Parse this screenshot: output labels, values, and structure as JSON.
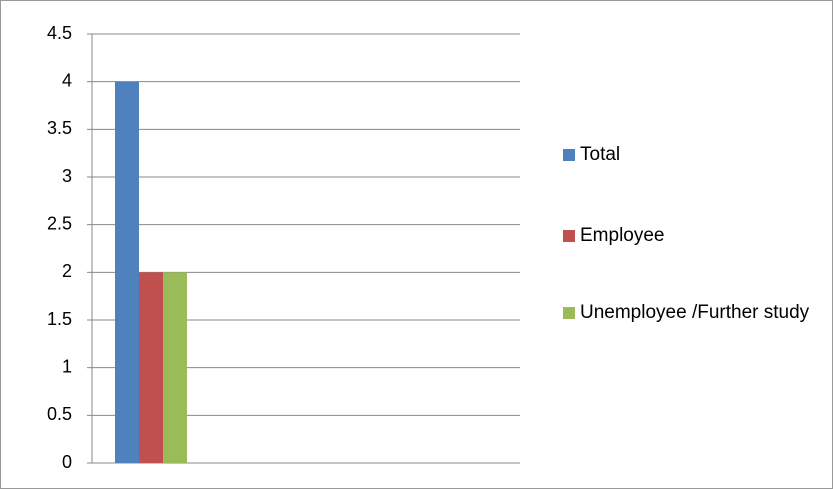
{
  "chart_data": {
    "type": "bar",
    "categories": [
      null
    ],
    "series": [
      {
        "name": "Total",
        "color": "#4f81bd",
        "values": [
          4
        ]
      },
      {
        "name": "Employee",
        "color": "#c0504d",
        "values": [
          2
        ]
      },
      {
        "name": "Unemployee /Further study",
        "color": "#9bbb59",
        "values": [
          2
        ]
      }
    ],
    "ylim": [
      0,
      4.5
    ],
    "yticks": [
      0,
      0.5,
      1,
      1.5,
      2,
      2.5,
      3,
      3.5,
      4,
      4.5
    ],
    "grid": true,
    "legend": "right"
  }
}
